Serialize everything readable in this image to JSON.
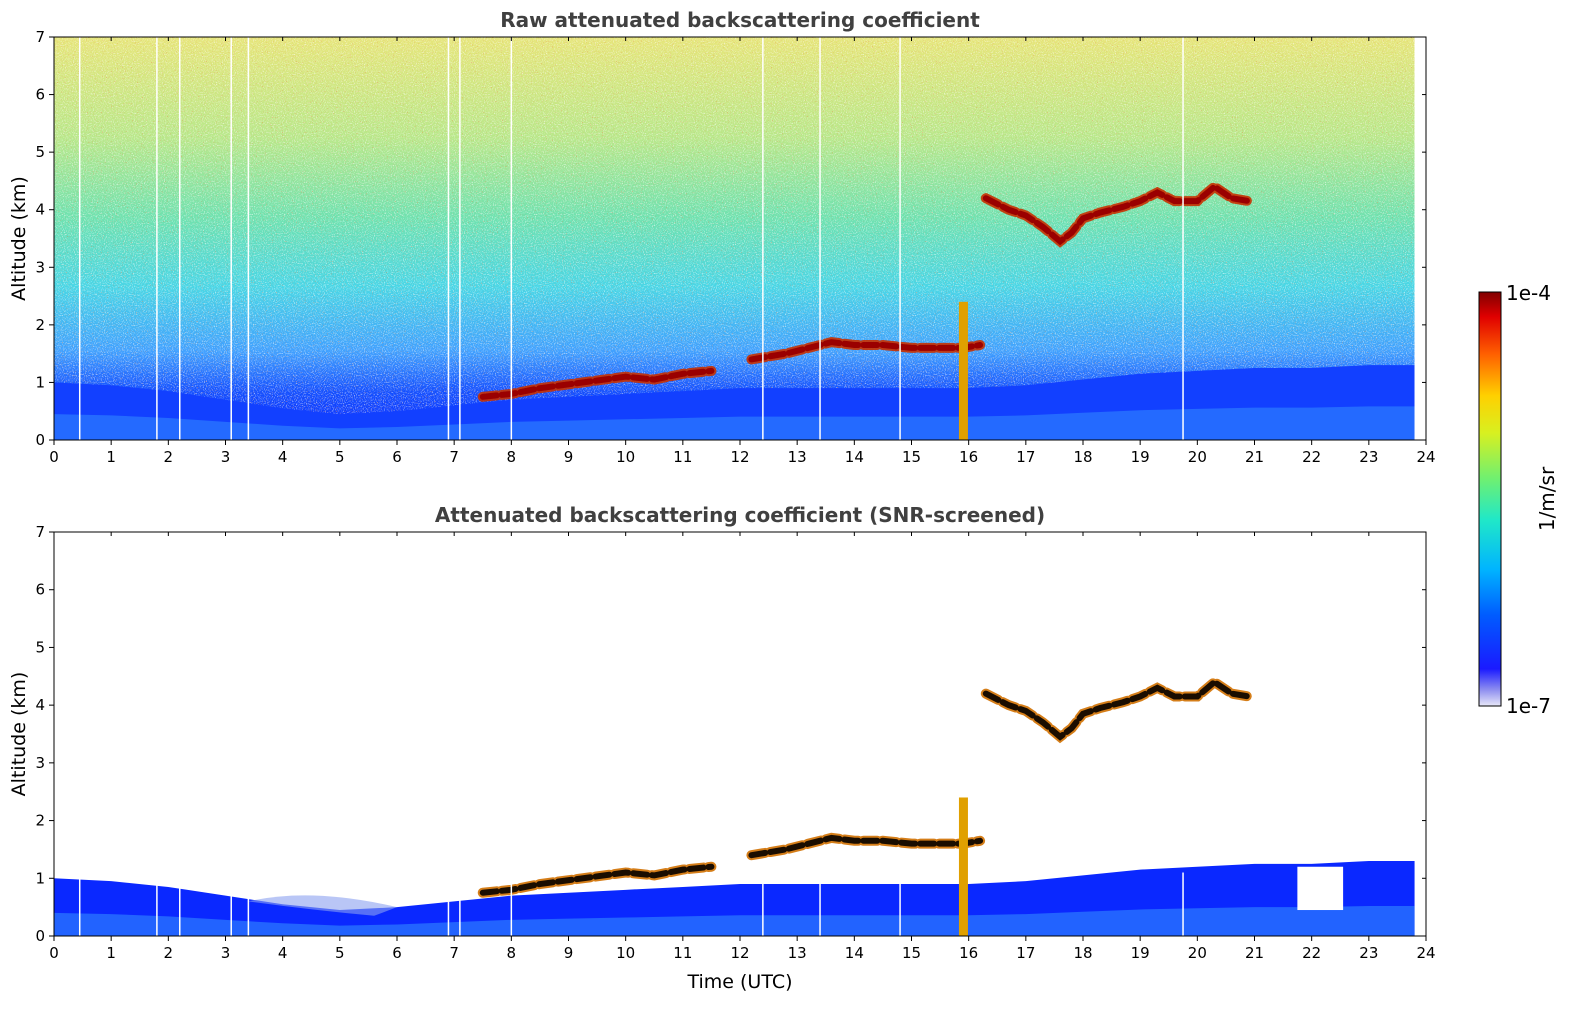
{
  "chart_data": [
    {
      "type": "heatmap",
      "title": "Raw attenuated backscattering coefficient",
      "ylabel": "Altitude (km)",
      "xlabel": "",
      "xlim": [
        0,
        24
      ],
      "ylim": [
        0,
        7
      ],
      "xticks": [
        0,
        1,
        2,
        3,
        4,
        5,
        6,
        7,
        8,
        9,
        10,
        11,
        12,
        13,
        14,
        15,
        16,
        17,
        18,
        19,
        20,
        21,
        22,
        23,
        24
      ],
      "yticks": [
        0,
        1,
        2,
        3,
        4,
        5,
        6,
        7
      ],
      "data_end_time": 23.8,
      "boundary_layer_top": [
        [
          0,
          1.0
        ],
        [
          1,
          0.95
        ],
        [
          2,
          0.85
        ],
        [
          3,
          0.7
        ],
        [
          4,
          0.55
        ],
        [
          5,
          0.45
        ],
        [
          6,
          0.5
        ],
        [
          7,
          0.6
        ],
        [
          8,
          0.7
        ],
        [
          9,
          0.75
        ],
        [
          10,
          0.8
        ],
        [
          11,
          0.85
        ],
        [
          12,
          0.9
        ],
        [
          13,
          0.9
        ],
        [
          14,
          0.9
        ],
        [
          15,
          0.9
        ],
        [
          16,
          0.9
        ],
        [
          17,
          0.95
        ],
        [
          18,
          1.05
        ],
        [
          19,
          1.15
        ],
        [
          20,
          1.2
        ],
        [
          21,
          1.25
        ],
        [
          22,
          1.25
        ],
        [
          23,
          1.3
        ],
        [
          23.8,
          1.3
        ]
      ],
      "cloud_layers": [
        {
          "points": [
            [
              16.3,
              4.2
            ],
            [
              16.7,
              4.0
            ],
            [
              17.0,
              3.9
            ],
            [
              17.3,
              3.7
            ],
            [
              17.6,
              3.45
            ],
            [
              17.8,
              3.6
            ],
            [
              18.0,
              3.85
            ],
            [
              18.3,
              3.95
            ],
            [
              18.7,
              4.05
            ],
            [
              19.0,
              4.15
            ],
            [
              19.3,
              4.3
            ],
            [
              19.6,
              4.15
            ],
            [
              20.0,
              4.15
            ],
            [
              20.3,
              4.4
            ],
            [
              20.6,
              4.2
            ],
            [
              20.9,
              4.15
            ]
          ]
        },
        {
          "points": [
            [
              12.2,
              1.4
            ],
            [
              12.8,
              1.5
            ],
            [
              13.2,
              1.6
            ],
            [
              13.6,
              1.7
            ],
            [
              14.0,
              1.65
            ],
            [
              14.5,
              1.65
            ],
            [
              15.0,
              1.6
            ],
            [
              15.5,
              1.6
            ],
            [
              15.9,
              1.6
            ],
            [
              16.2,
              1.65
            ]
          ]
        },
        {
          "points": [
            [
              7.5,
              0.75
            ],
            [
              8.0,
              0.8
            ],
            [
              8.5,
              0.9
            ],
            [
              10.0,
              1.1
            ],
            [
              10.5,
              1.05
            ],
            [
              11.0,
              1.15
            ],
            [
              11.5,
              1.2
            ]
          ]
        }
      ],
      "plume": {
        "x": 15.9,
        "ymin": 0,
        "ymax": 2.4
      },
      "data_gaps": [
        0.45,
        1.8,
        2.2,
        3.1,
        3.4,
        6.9,
        7.1,
        8.0,
        12.4,
        13.4,
        14.8,
        19.75
      ],
      "colormap": "jet"
    },
    {
      "type": "heatmap",
      "title": "Attenuated backscattering coefficient (SNR-screened)",
      "ylabel": "Altitude (km)",
      "xlabel": "Time (UTC)",
      "xlim": [
        0,
        24
      ],
      "ylim": [
        0,
        7
      ],
      "xticks": [
        0,
        1,
        2,
        3,
        4,
        5,
        6,
        7,
        8,
        9,
        10,
        11,
        12,
        13,
        14,
        15,
        16,
        17,
        18,
        19,
        20,
        21,
        22,
        23,
        24
      ],
      "yticks": [
        0,
        1,
        2,
        3,
        4,
        5,
        6,
        7
      ],
      "colormap": "jet"
    }
  ],
  "colorbar": {
    "label": "1/m/sr",
    "max_label": "1e-4",
    "min_label": "1e-7",
    "scale": "log"
  }
}
